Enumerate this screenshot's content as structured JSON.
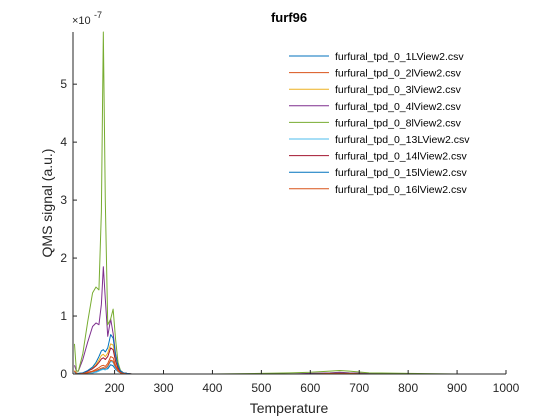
{
  "chart_data": {
    "type": "line",
    "title": "furf96",
    "xlabel": "Temperature",
    "ylabel": "QMS signal (a.u.)",
    "y_exponent_label": "×10",
    "y_exponent_power": "-7",
    "xlim": [
      115,
      1000
    ],
    "ylim": [
      0,
      5.9
    ],
    "xticks": [
      200,
      300,
      400,
      500,
      600,
      700,
      800,
      900,
      1000
    ],
    "yticks": [
      0,
      1,
      2,
      3,
      4,
      5
    ],
    "legend_location": "top-right",
    "grid": false,
    "x": [
      118,
      122,
      126,
      135,
      145,
      155,
      162,
      168,
      173,
      177,
      181,
      186,
      192,
      197,
      202,
      207,
      212,
      218,
      225,
      235,
      250,
      280,
      320,
      400,
      500,
      560,
      600,
      640,
      660,
      680,
      720,
      800,
      900,
      1000
    ],
    "series": [
      {
        "name": "furfural_tpd_0_1LView2.csv",
        "color": "#0072BD",
        "values": [
          0.03,
          0.01,
          0.0,
          0.0,
          0.01,
          0.02,
          0.04,
          0.06,
          0.08,
          0.09,
          0.08,
          0.09,
          0.16,
          0.14,
          0.08,
          0.04,
          0.02,
          0.01,
          0.0,
          0.0,
          0.0,
          0.0,
          0.0,
          0.0,
          0.0,
          0.0,
          0.0,
          0.01,
          0.01,
          0.01,
          0.0,
          0.0,
          0.0,
          0.0
        ]
      },
      {
        "name": "furfural_tpd_0_2lView2.csv",
        "color": "#D95319",
        "values": [
          0.05,
          0.01,
          0.0,
          0.01,
          0.03,
          0.05,
          0.08,
          0.11,
          0.14,
          0.15,
          0.13,
          0.18,
          0.3,
          0.28,
          0.15,
          0.07,
          0.03,
          0.01,
          0.01,
          0.0,
          0.0,
          0.0,
          0.0,
          0.0,
          0.0,
          0.0,
          0.0,
          0.01,
          0.01,
          0.01,
          0.0,
          0.0,
          0.0,
          0.0
        ]
      },
      {
        "name": "furfural_tpd_0_3lView2.csv",
        "color": "#EDB120",
        "values": [
          0.06,
          0.02,
          0.01,
          0.02,
          0.05,
          0.1,
          0.16,
          0.24,
          0.32,
          0.34,
          0.3,
          0.36,
          0.52,
          0.5,
          0.27,
          0.12,
          0.05,
          0.02,
          0.01,
          0.0,
          0.0,
          0.0,
          0.0,
          0.0,
          0.0,
          0.0,
          0.0,
          0.01,
          0.01,
          0.01,
          0.0,
          0.0,
          0.0,
          0.0
        ]
      },
      {
        "name": "furfural_tpd_0_4lView2.csv",
        "color": "#7E2F8E",
        "values": [
          0.15,
          0.05,
          0.05,
          0.25,
          0.55,
          0.82,
          0.88,
          0.85,
          1.2,
          1.85,
          1.3,
          0.65,
          0.95,
          0.7,
          0.35,
          0.15,
          0.06,
          0.02,
          0.01,
          0.0,
          0.0,
          0.0,
          0.0,
          0.0,
          0.0,
          0.0,
          0.01,
          0.02,
          0.03,
          0.02,
          0.01,
          0.0,
          0.0,
          0.0
        ]
      },
      {
        "name": "furfural_tpd_0_8lView2.csv",
        "color": "#77AC30",
        "values": [
          0.52,
          0.05,
          0.05,
          0.35,
          0.9,
          1.4,
          1.5,
          1.45,
          2.8,
          5.9,
          3.0,
          0.85,
          0.95,
          1.12,
          0.6,
          0.2,
          0.06,
          0.02,
          0.01,
          0.0,
          0.0,
          0.0,
          0.0,
          0.0,
          0.01,
          0.02,
          0.03,
          0.05,
          0.06,
          0.05,
          0.02,
          0.01,
          0.0,
          0.0
        ]
      },
      {
        "name": "furfural_tpd_0_13LView2.csv",
        "color": "#4DBEEE",
        "values": [
          0.03,
          0.01,
          0.0,
          0.0,
          0.01,
          0.02,
          0.03,
          0.05,
          0.07,
          0.08,
          0.07,
          0.12,
          0.22,
          0.2,
          0.1,
          0.04,
          0.02,
          0.01,
          0.0,
          0.0,
          0.0,
          0.0,
          0.0,
          0.0,
          0.0,
          0.0,
          0.0,
          0.01,
          0.01,
          0.01,
          0.0,
          0.0,
          0.0,
          0.0
        ]
      },
      {
        "name": "furfural_tpd_0_14lView2.csv",
        "color": "#A2142F",
        "values": [
          0.04,
          0.01,
          0.0,
          0.02,
          0.05,
          0.09,
          0.14,
          0.2,
          0.26,
          0.28,
          0.25,
          0.3,
          0.45,
          0.42,
          0.22,
          0.1,
          0.04,
          0.02,
          0.01,
          0.0,
          0.0,
          0.0,
          0.0,
          0.0,
          0.0,
          0.0,
          0.0,
          0.01,
          0.01,
          0.01,
          0.0,
          0.0,
          0.0,
          0.0
        ]
      },
      {
        "name": "furfural_tpd_0_15lView2.csv",
        "color": "#0072BD",
        "values": [
          0.04,
          0.01,
          0.01,
          0.02,
          0.06,
          0.12,
          0.2,
          0.3,
          0.4,
          0.42,
          0.38,
          0.45,
          0.68,
          0.62,
          0.32,
          0.14,
          0.05,
          0.02,
          0.01,
          0.0,
          0.0,
          0.0,
          0.0,
          0.0,
          0.0,
          0.0,
          0.0,
          0.01,
          0.01,
          0.01,
          0.0,
          0.0,
          0.0,
          0.0
        ]
      },
      {
        "name": "furfural_tpd_0_16lView2.csv",
        "color": "#D95319",
        "values": [
          0.05,
          0.01,
          0.0,
          0.01,
          0.02,
          0.04,
          0.06,
          0.08,
          0.1,
          0.11,
          0.1,
          0.14,
          0.24,
          0.22,
          0.12,
          0.05,
          0.02,
          0.01,
          0.0,
          0.0,
          0.0,
          0.0,
          0.0,
          0.0,
          0.0,
          0.0,
          0.0,
          0.01,
          0.01,
          0.01,
          0.0,
          0.0,
          0.0,
          0.0
        ]
      }
    ]
  }
}
